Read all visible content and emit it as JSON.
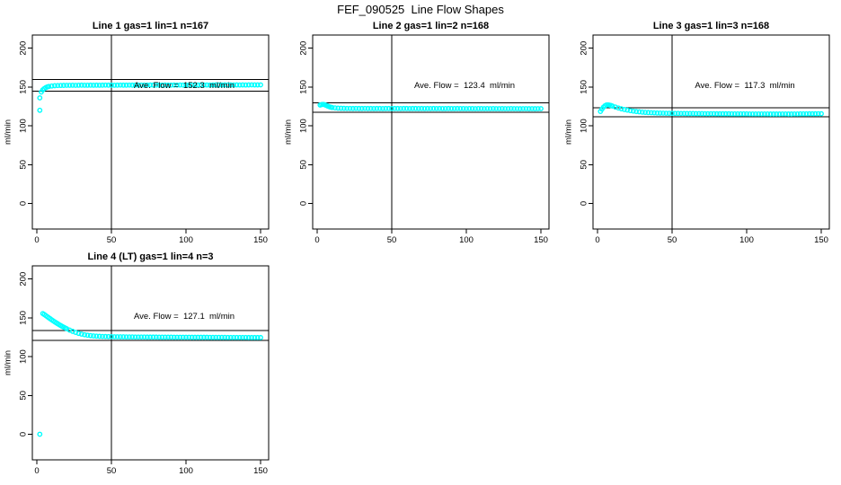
{
  "page": {
    "main_title": "FEF_090525  Line Flow Shapes"
  },
  "colors": {
    "points": "#00FFFF",
    "axis": "#000000",
    "background": "#FFFFFF"
  },
  "axes": {
    "ylabel": "ml/min",
    "y_ticks": [
      0,
      50,
      100,
      150,
      200
    ],
    "x_ticks": [
      0,
      50,
      100,
      150
    ],
    "xlim": [
      -3,
      155.4
    ],
    "ylim": [
      -33,
      217
    ],
    "vline_x": 50,
    "grid": false
  },
  "chart_data": [
    {
      "type": "scatter",
      "title": "Line 1 gas=1 lin=1 n=167",
      "avg_label": "Ave. Flow =  152.3  ml/min",
      "avg_flow": 152.3,
      "limit_lines": [
        159.9,
        144.7
      ],
      "points": [
        [
          2,
          136
        ],
        [
          2,
          120
        ],
        [
          3,
          143.5
        ],
        [
          4,
          146.3
        ],
        [
          5,
          148
        ],
        [
          6,
          149.2
        ],
        [
          7,
          150.1
        ],
        [
          8,
          150.7
        ],
        [
          10,
          151.3
        ],
        [
          12,
          151.7
        ],
        [
          14,
          151.9
        ],
        [
          16,
          152
        ],
        [
          18,
          152.1
        ],
        [
          20,
          152.2
        ],
        [
          22,
          152.2
        ],
        [
          24,
          152.3
        ],
        [
          26,
          152.2
        ],
        [
          28,
          152.3
        ],
        [
          30,
          152.4
        ],
        [
          32,
          152.3
        ],
        [
          34,
          152.3
        ],
        [
          36,
          152.4
        ],
        [
          38,
          152.3
        ],
        [
          40,
          152.4
        ],
        [
          42,
          152.3
        ],
        [
          44,
          152.4
        ],
        [
          46,
          152.5
        ],
        [
          48,
          152.4
        ],
        [
          50,
          152.4
        ],
        [
          52,
          152.3
        ],
        [
          54,
          152.4
        ],
        [
          56,
          152.5
        ],
        [
          58,
          152.4
        ],
        [
          60,
          152.4
        ],
        [
          62,
          152.5
        ],
        [
          64,
          152.4
        ],
        [
          66,
          152.5
        ],
        [
          68,
          152.4
        ],
        [
          70,
          152.5
        ],
        [
          72,
          152.4
        ],
        [
          74,
          152.5
        ],
        [
          76,
          152.6
        ],
        [
          78,
          152.5
        ],
        [
          80,
          152.5
        ],
        [
          82,
          152.4
        ],
        [
          84,
          152.5
        ],
        [
          86,
          152.6
        ],
        [
          88,
          152.5
        ],
        [
          90,
          152.5
        ],
        [
          92,
          152.6
        ],
        [
          94,
          152.5
        ],
        [
          96,
          152.6
        ],
        [
          98,
          152.5
        ],
        [
          100,
          152.6
        ],
        [
          102,
          152.5
        ],
        [
          104,
          152.6
        ],
        [
          106,
          152.5
        ],
        [
          108,
          152.6
        ],
        [
          110,
          152.7
        ],
        [
          112,
          152.6
        ],
        [
          114,
          152.6
        ],
        [
          116,
          152.5
        ],
        [
          118,
          152.6
        ],
        [
          120,
          152.7
        ],
        [
          122,
          152.6
        ],
        [
          124,
          152.6
        ],
        [
          126,
          152.7
        ],
        [
          128,
          152.6
        ],
        [
          130,
          152.7
        ],
        [
          132,
          152.6
        ],
        [
          134,
          152.7
        ],
        [
          136,
          152.6
        ],
        [
          138,
          152.7
        ],
        [
          140,
          152.6
        ],
        [
          142,
          152.7
        ],
        [
          144,
          152.8
        ],
        [
          146,
          152.7
        ],
        [
          148,
          152.7
        ],
        [
          150,
          152.8
        ]
      ]
    },
    {
      "type": "scatter",
      "title": "Line 2 gas=1 lin=2 n=168",
      "avg_label": "Ave. Flow =  123.4  ml/min",
      "avg_flow": 123.4,
      "limit_lines": [
        129.6,
        117.2
      ],
      "points": [
        [
          2,
          126.8
        ],
        [
          3,
          127.4
        ],
        [
          4,
          127.6
        ],
        [
          5,
          127.2
        ],
        [
          6,
          126.4
        ],
        [
          7,
          125.5
        ],
        [
          8,
          124.7
        ],
        [
          9,
          124.1
        ],
        [
          10,
          123.6
        ],
        [
          12,
          123.1
        ],
        [
          14,
          122.8
        ],
        [
          16,
          122.6
        ],
        [
          18,
          122.5
        ],
        [
          20,
          122.4
        ],
        [
          22,
          122.4
        ],
        [
          24,
          122.3
        ],
        [
          26,
          122.4
        ],
        [
          28,
          122.3
        ],
        [
          30,
          122.3
        ],
        [
          32,
          122.4
        ],
        [
          34,
          122.3
        ],
        [
          36,
          122.3
        ],
        [
          38,
          122.2
        ],
        [
          40,
          122.3
        ],
        [
          42,
          122.3
        ],
        [
          44,
          122.2
        ],
        [
          46,
          122.3
        ],
        [
          48,
          122.3
        ],
        [
          50,
          122.2
        ],
        [
          52,
          122.3
        ],
        [
          54,
          122.3
        ],
        [
          56,
          122.2
        ],
        [
          58,
          122.3
        ],
        [
          60,
          122.3
        ],
        [
          62,
          122.2
        ],
        [
          64,
          122.3
        ],
        [
          66,
          122.3
        ],
        [
          68,
          122.2
        ],
        [
          70,
          122.3
        ],
        [
          72,
          122.2
        ],
        [
          74,
          122.3
        ],
        [
          76,
          122.2
        ],
        [
          78,
          122.3
        ],
        [
          80,
          122.2
        ],
        [
          82,
          122.3
        ],
        [
          84,
          122.2
        ],
        [
          86,
          122.2
        ],
        [
          88,
          122.3
        ],
        [
          90,
          122.2
        ],
        [
          92,
          122.2
        ],
        [
          94,
          122.3
        ],
        [
          96,
          122.2
        ],
        [
          98,
          122.2
        ],
        [
          100,
          122.1
        ],
        [
          102,
          122.2
        ],
        [
          104,
          122.2
        ],
        [
          106,
          122.1
        ],
        [
          108,
          122.2
        ],
        [
          110,
          122.2
        ],
        [
          112,
          122.1
        ],
        [
          114,
          122.2
        ],
        [
          116,
          122.1
        ],
        [
          118,
          122.2
        ],
        [
          120,
          122.1
        ],
        [
          122,
          122.1
        ],
        [
          124,
          122.2
        ],
        [
          126,
          122.1
        ],
        [
          128,
          122.1
        ],
        [
          130,
          122.2
        ],
        [
          132,
          122.1
        ],
        [
          134,
          122.1
        ],
        [
          136,
          122
        ],
        [
          138,
          122.1
        ],
        [
          140,
          122.1
        ],
        [
          142,
          122
        ],
        [
          144,
          122.1
        ],
        [
          146,
          122
        ],
        [
          148,
          122.1
        ],
        [
          150,
          122.1
        ]
      ]
    },
    {
      "type": "scatter",
      "title": "Line 3 gas=1 lin=3 n=168",
      "avg_label": "Ave. Flow =  117.3  ml/min",
      "avg_flow": 117.3,
      "limit_lines": [
        123.2,
        111.4
      ],
      "points": [
        [
          2,
          118.5
        ],
        [
          3,
          121.5
        ],
        [
          4,
          124
        ],
        [
          5,
          125.8
        ],
        [
          6,
          126.8
        ],
        [
          7,
          127
        ],
        [
          8,
          126.7
        ],
        [
          9,
          126.2
        ],
        [
          10,
          125.5
        ],
        [
          12,
          124.2
        ],
        [
          14,
          123
        ],
        [
          16,
          121.9
        ],
        [
          18,
          121
        ],
        [
          20,
          120.2
        ],
        [
          22,
          119.5
        ],
        [
          24,
          118.9
        ],
        [
          26,
          118.4
        ],
        [
          28,
          118
        ],
        [
          30,
          117.6
        ],
        [
          32,
          117.3
        ],
        [
          34,
          117.1
        ],
        [
          36,
          116.9
        ],
        [
          38,
          116.7
        ],
        [
          40,
          116.5
        ],
        [
          42,
          116.4
        ],
        [
          44,
          116.3
        ],
        [
          46,
          116.2
        ],
        [
          48,
          116.1
        ],
        [
          50,
          116.1
        ],
        [
          52,
          116
        ],
        [
          54,
          116
        ],
        [
          56,
          115.9
        ],
        [
          58,
          115.9
        ],
        [
          60,
          115.8
        ],
        [
          62,
          115.8
        ],
        [
          64,
          115.8
        ],
        [
          66,
          115.7
        ],
        [
          68,
          115.7
        ],
        [
          70,
          115.7
        ],
        [
          72,
          115.6
        ],
        [
          74,
          115.6
        ],
        [
          76,
          115.6
        ],
        [
          78,
          115.6
        ],
        [
          80,
          115.5
        ],
        [
          82,
          115.5
        ],
        [
          84,
          115.5
        ],
        [
          86,
          115.5
        ],
        [
          88,
          115.5
        ],
        [
          90,
          115.4
        ],
        [
          92,
          115.4
        ],
        [
          94,
          115.4
        ],
        [
          96,
          115.4
        ],
        [
          98,
          115.4
        ],
        [
          100,
          115.4
        ],
        [
          102,
          115.3
        ],
        [
          104,
          115.3
        ],
        [
          106,
          115.3
        ],
        [
          108,
          115.3
        ],
        [
          110,
          115.3
        ],
        [
          112,
          115.3
        ],
        [
          114,
          115.3
        ],
        [
          116,
          115.2
        ],
        [
          118,
          115.2
        ],
        [
          120,
          115.2
        ],
        [
          122,
          115.2
        ],
        [
          124,
          115.3
        ],
        [
          126,
          115.3
        ],
        [
          128,
          115.2
        ],
        [
          130,
          115.2
        ],
        [
          132,
          115.3
        ],
        [
          134,
          115.3
        ],
        [
          136,
          115.4
        ],
        [
          138,
          115.4
        ],
        [
          140,
          115.4
        ],
        [
          142,
          115.5
        ],
        [
          144,
          115.5
        ],
        [
          146,
          115.5
        ],
        [
          148,
          115.6
        ],
        [
          150,
          115.6
        ]
      ]
    },
    {
      "type": "scatter",
      "title": "Line 4 (LT) gas=1 lin=4 n=3",
      "avg_label": "Ave. Flow =  127.1  ml/min",
      "avg_flow": 127.1,
      "limit_lines": [
        133.5,
        120.7
      ],
      "points": [
        [
          2,
          0
        ],
        [
          4,
          155.5
        ],
        [
          5,
          154.3
        ],
        [
          6,
          152.9
        ],
        [
          7,
          151.5
        ],
        [
          8,
          150.1
        ],
        [
          9,
          148.8
        ],
        [
          10,
          147.4
        ],
        [
          11,
          146.1
        ],
        [
          12,
          144.8
        ],
        [
          13,
          143.6
        ],
        [
          14,
          142.4
        ],
        [
          15,
          141.2
        ],
        [
          16,
          140.1
        ],
        [
          17,
          139
        ],
        [
          18,
          138
        ],
        [
          19,
          137
        ],
        [
          20,
          136
        ],
        [
          22,
          134.2
        ],
        [
          24,
          132.6
        ],
        [
          26,
          131.2
        ],
        [
          28,
          130
        ],
        [
          30,
          129
        ],
        [
          32,
          128.2
        ],
        [
          34,
          127.6
        ],
        [
          36,
          127.1
        ],
        [
          38,
          126.7
        ],
        [
          40,
          126.4
        ],
        [
          42,
          126.2
        ],
        [
          44,
          126
        ],
        [
          46,
          125.9
        ],
        [
          48,
          125.8
        ],
        [
          50,
          125.7
        ],
        [
          52,
          125.6
        ],
        [
          54,
          125.6
        ],
        [
          56,
          125.5
        ],
        [
          58,
          125.5
        ],
        [
          60,
          125.4
        ],
        [
          62,
          125.4
        ],
        [
          64,
          125.4
        ],
        [
          66,
          125.3
        ],
        [
          68,
          125.3
        ],
        [
          70,
          125.3
        ],
        [
          72,
          125.3
        ],
        [
          74,
          125.2
        ],
        [
          76,
          125.2
        ],
        [
          78,
          125.2
        ],
        [
          80,
          125.2
        ],
        [
          82,
          125.1
        ],
        [
          84,
          125.1
        ],
        [
          86,
          125.1
        ],
        [
          88,
          125.1
        ],
        [
          90,
          125.1
        ],
        [
          92,
          125
        ],
        [
          94,
          125
        ],
        [
          96,
          125
        ],
        [
          98,
          125
        ],
        [
          100,
          125
        ],
        [
          102,
          125
        ],
        [
          104,
          124.9
        ],
        [
          106,
          124.9
        ],
        [
          108,
          124.9
        ],
        [
          110,
          124.9
        ],
        [
          112,
          124.9
        ],
        [
          114,
          124.9
        ],
        [
          116,
          124.8
        ],
        [
          118,
          124.8
        ],
        [
          120,
          124.8
        ],
        [
          122,
          124.8
        ],
        [
          124,
          124.8
        ],
        [
          126,
          124.8
        ],
        [
          128,
          124.7
        ],
        [
          130,
          124.7
        ],
        [
          132,
          124.7
        ],
        [
          134,
          124.7
        ],
        [
          136,
          124.7
        ],
        [
          138,
          124.7
        ],
        [
          140,
          124.7
        ],
        [
          142,
          124.6
        ],
        [
          144,
          124.6
        ],
        [
          146,
          124.6
        ],
        [
          148,
          124.6
        ],
        [
          150,
          124.6
        ]
      ]
    }
  ]
}
